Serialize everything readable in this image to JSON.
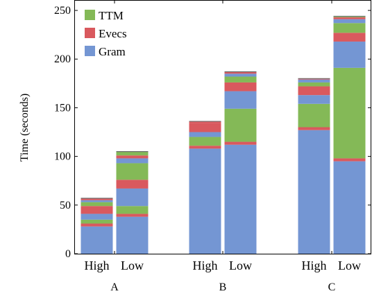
{
  "chart_data": {
    "type": "bar",
    "stacked": true,
    "ylabel": "Time (seconds)",
    "ylim": [
      0,
      260
    ],
    "yticks": [
      0,
      50,
      100,
      150,
      200,
      250
    ],
    "grid": false,
    "legend": {
      "position": "top-left",
      "entries": [
        "TTM",
        "Evecs",
        "Gram"
      ]
    },
    "colors": {
      "Gram": "#7496d3",
      "Evecs": "#d9595e",
      "TTM": "#84b957"
    },
    "groups": [
      {
        "label": "A",
        "bars": [
          {
            "label": "High",
            "segments": [
              {
                "name": "Gram",
                "value": 28
              },
              {
                "name": "Evecs",
                "value": 3
              },
              {
                "name": "TTM",
                "value": 4
              },
              {
                "name": "Gram",
                "value": 6
              },
              {
                "name": "Evecs",
                "value": 8
              },
              {
                "name": "TTM",
                "value": 4
              },
              {
                "name": "Gram",
                "value": 2
              },
              {
                "name": "Evecs",
                "value": 2
              }
            ]
          },
          {
            "label": "Low",
            "segments": [
              {
                "name": "Gram",
                "value": 38
              },
              {
                "name": "Evecs",
                "value": 3
              },
              {
                "name": "TTM",
                "value": 8
              },
              {
                "name": "Gram",
                "value": 18
              },
              {
                "name": "Evecs",
                "value": 9
              },
              {
                "name": "TTM",
                "value": 17
              },
              {
                "name": "Gram",
                "value": 5
              },
              {
                "name": "Evecs",
                "value": 3
              },
              {
                "name": "TTM",
                "value": 4
              }
            ]
          }
        ]
      },
      {
        "label": "B",
        "bars": [
          {
            "label": "High",
            "segments": [
              {
                "name": "Gram",
                "value": 108
              },
              {
                "name": "Evecs",
                "value": 3
              },
              {
                "name": "TTM",
                "value": 9
              },
              {
                "name": "Gram",
                "value": 5
              },
              {
                "name": "Evecs",
                "value": 9
              },
              {
                "name": "Evecs",
                "value": 2
              }
            ]
          },
          {
            "label": "Low",
            "segments": [
              {
                "name": "Gram",
                "value": 112
              },
              {
                "name": "Evecs",
                "value": 3
              },
              {
                "name": "TTM",
                "value": 34
              },
              {
                "name": "Gram",
                "value": 18
              },
              {
                "name": "Evecs",
                "value": 9
              },
              {
                "name": "TTM",
                "value": 6
              },
              {
                "name": "Gram",
                "value": 3
              },
              {
                "name": "Evecs",
                "value": 2
              }
            ]
          }
        ]
      },
      {
        "label": "C",
        "bars": [
          {
            "label": "High",
            "segments": [
              {
                "name": "Gram",
                "value": 127
              },
              {
                "name": "Evecs",
                "value": 3
              },
              {
                "name": "TTM",
                "value": 24
              },
              {
                "name": "Gram",
                "value": 9
              },
              {
                "name": "Evecs",
                "value": 9
              },
              {
                "name": "TTM",
                "value": 4
              },
              {
                "name": "Gram",
                "value": 3
              },
              {
                "name": "Evecs",
                "value": 1
              }
            ]
          },
          {
            "label": "Low",
            "segments": [
              {
                "name": "Gram",
                "value": 95
              },
              {
                "name": "Evecs",
                "value": 3
              },
              {
                "name": "TTM",
                "value": 93
              },
              {
                "name": "Gram",
                "value": 27
              },
              {
                "name": "Evecs",
                "value": 9
              },
              {
                "name": "TTM",
                "value": 10
              },
              {
                "name": "Gram",
                "value": 4
              },
              {
                "name": "Evecs",
                "value": 2
              },
              {
                "name": "TTM",
                "value": 1
              }
            ]
          }
        ]
      }
    ]
  }
}
